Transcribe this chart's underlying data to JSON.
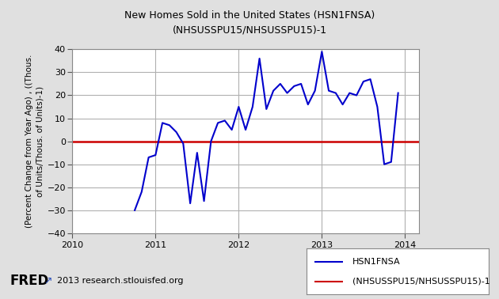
{
  "title_line1": "New Homes Sold in the United States (HSN1FNSA)",
  "title_line2": "(NHSUSSPU15/NHSUSSPU15)-1",
  "ylabel": "(Percent Change from Year Ago) , ((Thous.\nof Units/Thous. of Units)-1)",
  "xlim": [
    2010.0,
    2014.17
  ],
  "ylim": [
    -40,
    40
  ],
  "yticks": [
    -40,
    -30,
    -20,
    -10,
    0,
    10,
    20,
    30,
    40
  ],
  "xticks": [
    2010,
    2011,
    2012,
    2013,
    2014
  ],
  "background_color": "#e0e0e0",
  "plot_bg_color": "#ffffff",
  "grid_color": "#b0b0b0",
  "line_color": "#0000cc",
  "zero_line_color": "#cc0000",
  "legend_label_blue": "HSN1FNSA",
  "legend_label_red": "(NHSUSSPU15/NHSUSSPU15)-1",
  "source_text": "2013 research.stlouisfed.org",
  "x": [
    2010.75,
    2010.833,
    2010.917,
    2011.0,
    2011.083,
    2011.167,
    2011.25,
    2011.333,
    2011.417,
    2011.5,
    2011.583,
    2011.667,
    2011.75,
    2011.833,
    2011.917,
    2012.0,
    2012.083,
    2012.167,
    2012.25,
    2012.333,
    2012.417,
    2012.5,
    2012.583,
    2012.667,
    2012.75,
    2012.833,
    2012.917,
    2013.0,
    2013.083,
    2013.167,
    2013.25,
    2013.333,
    2013.417,
    2013.5,
    2013.583,
    2013.667,
    2013.75,
    2013.833,
    2013.917
  ],
  "y": [
    -30,
    -22,
    -7,
    -6,
    8,
    7,
    4,
    -1,
    -27,
    -5,
    -26,
    0,
    8,
    9,
    5,
    15,
    5,
    15,
    36,
    14,
    22,
    25,
    21,
    24,
    25,
    16,
    22,
    39,
    22,
    21,
    16,
    21,
    20,
    26,
    27,
    15,
    -10,
    -9,
    21
  ]
}
